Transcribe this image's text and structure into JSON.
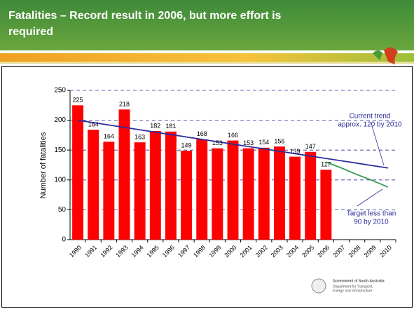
{
  "chart_data": {
    "type": "bar",
    "title": [
      "Fatalities – Record result in 2006, but more effort is",
      "required"
    ],
    "y_label": "Number of fatalities",
    "categories": [
      "1990",
      "1991",
      "1992",
      "1993",
      "1994",
      "1995",
      "1996",
      "1997",
      "1998",
      "1999",
      "2000",
      "2001",
      "2002",
      "2003",
      "2004",
      "2005",
      "2006",
      "2007",
      "2008",
      "2009",
      "2010"
    ],
    "values": [
      225,
      184,
      164,
      218,
      163,
      182,
      181,
      149,
      168,
      153,
      166,
      153,
      154,
      156,
      139,
      147,
      117,
      null,
      null,
      null,
      null
    ],
    "color": "#ff0000",
    "trend_line": {
      "color": "#2e2e9e",
      "values": [
        200,
        196,
        192,
        188,
        184,
        180,
        176,
        172,
        168,
        164,
        160,
        156,
        152,
        148,
        144,
        140,
        136,
        132,
        128,
        124,
        120
      ]
    },
    "target_line": {
      "color": "#3a9a5a",
      "values": [
        null,
        null,
        null,
        null,
        null,
        null,
        null,
        null,
        null,
        null,
        null,
        null,
        null,
        null,
        null,
        null,
        130,
        120,
        109,
        99,
        88
      ]
    },
    "annotations": [
      [
        "Current trend",
        "approx. 120 by 2010"
      ],
      [
        "Target less than",
        "90 by 2010"
      ]
    ],
    "ylim": [
      0,
      250
    ],
    "yticks": [
      0,
      50,
      100,
      150,
      200,
      250
    ],
    "grid": true,
    "footer": [
      "Government of South Australia",
      "Department for Transport,",
      "Energy and Infrastructure"
    ]
  }
}
